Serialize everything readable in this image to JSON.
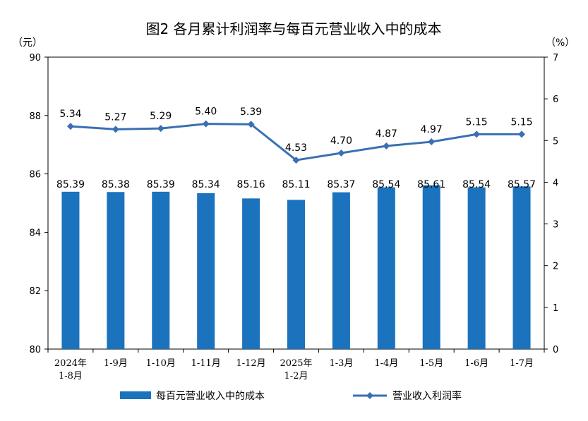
{
  "chart_data": {
    "type": "bar",
    "title": "图2  各月累计利润率与每百元营业收入中的成本",
    "left_unit": "（元）",
    "right_unit": "（%）",
    "categories": [
      [
        "2024年",
        "1-8月"
      ],
      [
        "1-9月"
      ],
      [
        "1-10月"
      ],
      [
        "1-11月"
      ],
      [
        "1-12月"
      ],
      [
        "2025年",
        "1-2月"
      ],
      [
        "1-3月"
      ],
      [
        "1-4月"
      ],
      [
        "1-5月"
      ],
      [
        "1-6月"
      ],
      [
        "1-7月"
      ]
    ],
    "series": [
      {
        "name": "每百元营业收入中的成本",
        "type": "bar",
        "axis": "left",
        "values": [
          85.39,
          85.38,
          85.39,
          85.34,
          85.16,
          85.11,
          85.37,
          85.54,
          85.61,
          85.54,
          85.57
        ],
        "labels": [
          "85.39",
          "85.38",
          "85.39",
          "85.34",
          "85.16",
          "85.11",
          "85.37",
          "85.54",
          "85.61",
          "85.54",
          "85.57"
        ]
      },
      {
        "name": "营业收入利润率",
        "type": "line",
        "axis": "right",
        "marker": "diamond",
        "values": [
          5.34,
          5.27,
          5.29,
          5.4,
          5.39,
          4.53,
          4.7,
          4.87,
          4.97,
          5.15,
          5.15
        ],
        "labels": [
          "5.34",
          "5.27",
          "5.29",
          "5.40",
          "5.39",
          "4.53",
          "4.70",
          "4.87",
          "4.97",
          "5.15",
          "5.15"
        ]
      }
    ],
    "y_left": {
      "min": 80,
      "max": 90,
      "ticks": [
        "80",
        "82",
        "84",
        "86",
        "88",
        "90"
      ]
    },
    "y_right": {
      "min": 0,
      "max": 7,
      "ticks": [
        "0",
        "1",
        "2",
        "3",
        "4",
        "5",
        "6",
        "7"
      ]
    },
    "grid": false,
    "legend_position": "bottom",
    "colors": {
      "bar": "#1b72bd",
      "line": "#3a70b2"
    }
  }
}
